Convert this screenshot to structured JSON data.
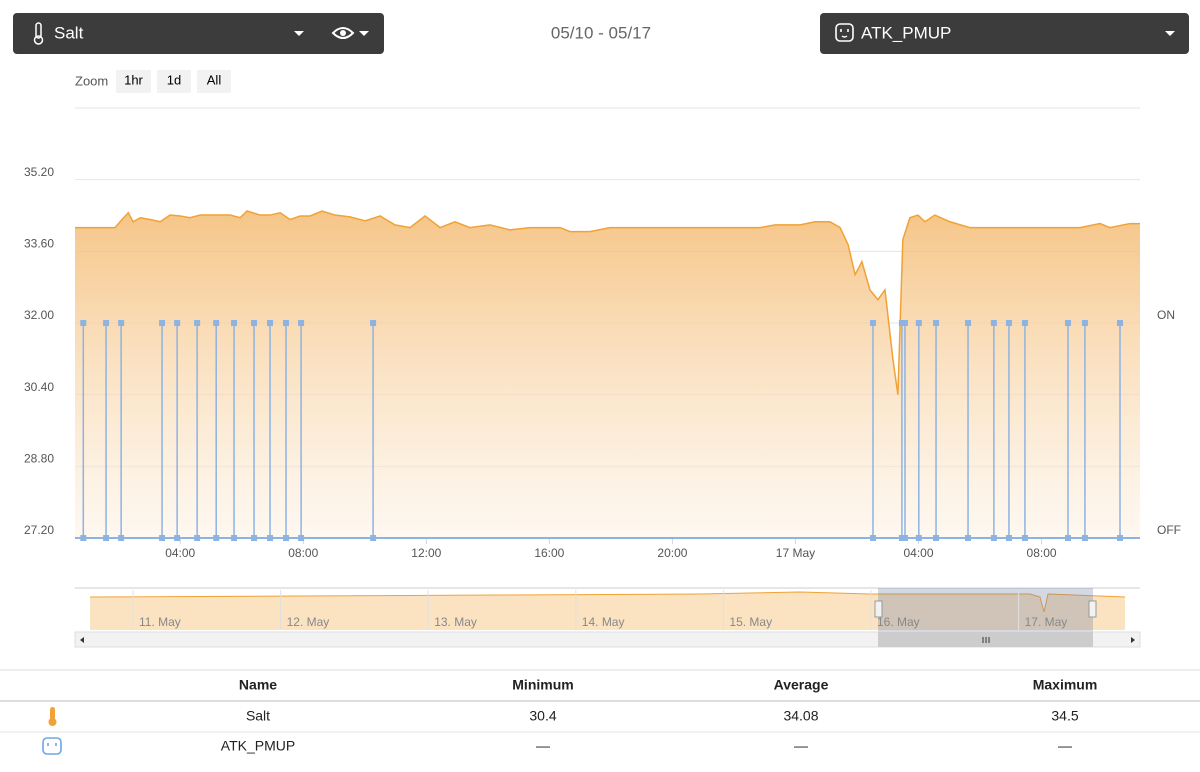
{
  "header": {
    "sensor": "Salt",
    "date_range": "05/10 - 05/17",
    "device": "ATK_PMUP"
  },
  "zoom": {
    "label": "Zoom",
    "buttons": [
      "1hr",
      "1d",
      "All"
    ]
  },
  "chart": {
    "type": "line",
    "xlim": [
      0.58,
      35.2
    ],
    "xticks": [
      {
        "value": 4,
        "label": "04:00"
      },
      {
        "value": 8,
        "label": "08:00"
      },
      {
        "value": 12,
        "label": "12:00"
      },
      {
        "value": 16,
        "label": "16:00"
      },
      {
        "value": 20,
        "label": "20:00"
      },
      {
        "value": 24,
        "label": "17 May"
      },
      {
        "value": 28,
        "label": "04:00"
      },
      {
        "value": 32,
        "label": "08:00"
      }
    ],
    "ylim": [
      27.2,
      36.8
    ],
    "yticks": [
      {
        "value": 27.2,
        "label": "27.20"
      },
      {
        "value": 28.8,
        "label": "28.80"
      },
      {
        "value": 30.4,
        "label": "30.40"
      },
      {
        "value": 32.0,
        "label": "32.00"
      },
      {
        "value": 33.6,
        "label": "33.60"
      },
      {
        "value": 35.2,
        "label": "35.20"
      }
    ],
    "y2lim": [
      0,
      2
    ],
    "y2ticks": [
      {
        "value": 0,
        "label": "OFF"
      },
      {
        "value": 1,
        "label": "ON"
      }
    ],
    "grid": true,
    "series": [
      {
        "name": "Salt",
        "color": "#f0a236",
        "x": [
          0.58,
          1.88,
          2.11,
          2.31,
          2.47,
          2.7,
          3.02,
          3.35,
          3.67,
          4.0,
          4.32,
          4.65,
          5.13,
          5.62,
          5.95,
          6.17,
          6.6,
          6.92,
          7.25,
          7.57,
          7.9,
          8.22,
          8.61,
          9.03,
          9.52,
          10.01,
          10.5,
          10.98,
          11.47,
          11.96,
          12.45,
          12.93,
          13.42,
          14.07,
          14.72,
          15.37,
          16.35,
          16.67,
          17.32,
          17.97,
          19.27,
          20.57,
          21.87,
          22.85,
          23.34,
          23.82,
          24.15,
          24.64,
          25.12,
          25.45,
          25.71,
          25.94,
          26.16,
          26.42,
          26.68,
          26.91,
          27.17,
          27.33,
          27.49,
          27.72,
          27.98,
          28.21,
          28.53,
          29.02,
          29.67,
          30.65,
          31.62,
          32.6,
          33.25,
          33.9,
          34.22,
          34.87,
          35.2
        ],
        "values": [
          34.13,
          34.13,
          34.31,
          34.46,
          34.26,
          34.35,
          34.31,
          34.26,
          34.41,
          34.39,
          34.35,
          34.41,
          34.41,
          34.41,
          34.35,
          34.5,
          34.41,
          34.41,
          34.46,
          34.31,
          34.39,
          34.39,
          34.5,
          34.41,
          34.37,
          34.28,
          34.39,
          34.19,
          34.13,
          34.39,
          34.13,
          34.26,
          34.13,
          34.19,
          34.08,
          34.13,
          34.13,
          34.04,
          34.04,
          34.13,
          34.13,
          34.13,
          34.13,
          34.13,
          34.19,
          34.19,
          34.19,
          34.26,
          34.26,
          34.13,
          33.75,
          33.08,
          33.37,
          32.74,
          32.52,
          32.74,
          31.18,
          30.4,
          33.86,
          34.35,
          34.41,
          34.26,
          34.41,
          34.26,
          34.13,
          34.13,
          34.13,
          34.13,
          34.13,
          34.22,
          34.13,
          34.22,
          34.22
        ]
      },
      {
        "name": "ATK_PMUP",
        "color": "#8db3e2",
        "axis": "y2",
        "x": [
          0.85,
          1.59,
          2.08,
          3.41,
          3.9,
          4.55,
          5.17,
          5.75,
          6.4,
          6.92,
          7.44,
          7.93,
          10.27,
          26.52,
          27.46,
          27.56,
          28.01,
          28.57,
          29.61,
          30.45,
          30.94,
          31.46,
          32.86,
          33.41,
          34.55
        ]
      }
    ]
  },
  "navigator": {
    "labels": [
      "11. May",
      "12. May",
      "13. May",
      "14. May",
      "15. May",
      "16. May",
      "17. May"
    ]
  },
  "table": {
    "columns": [
      "Name",
      "Minimum",
      "Average",
      "Maximum"
    ],
    "rows": [
      [
        "Salt",
        30.4,
        34.08,
        34.5
      ],
      [
        "ATK_PMUP",
        "—",
        "—",
        "—"
      ]
    ]
  }
}
